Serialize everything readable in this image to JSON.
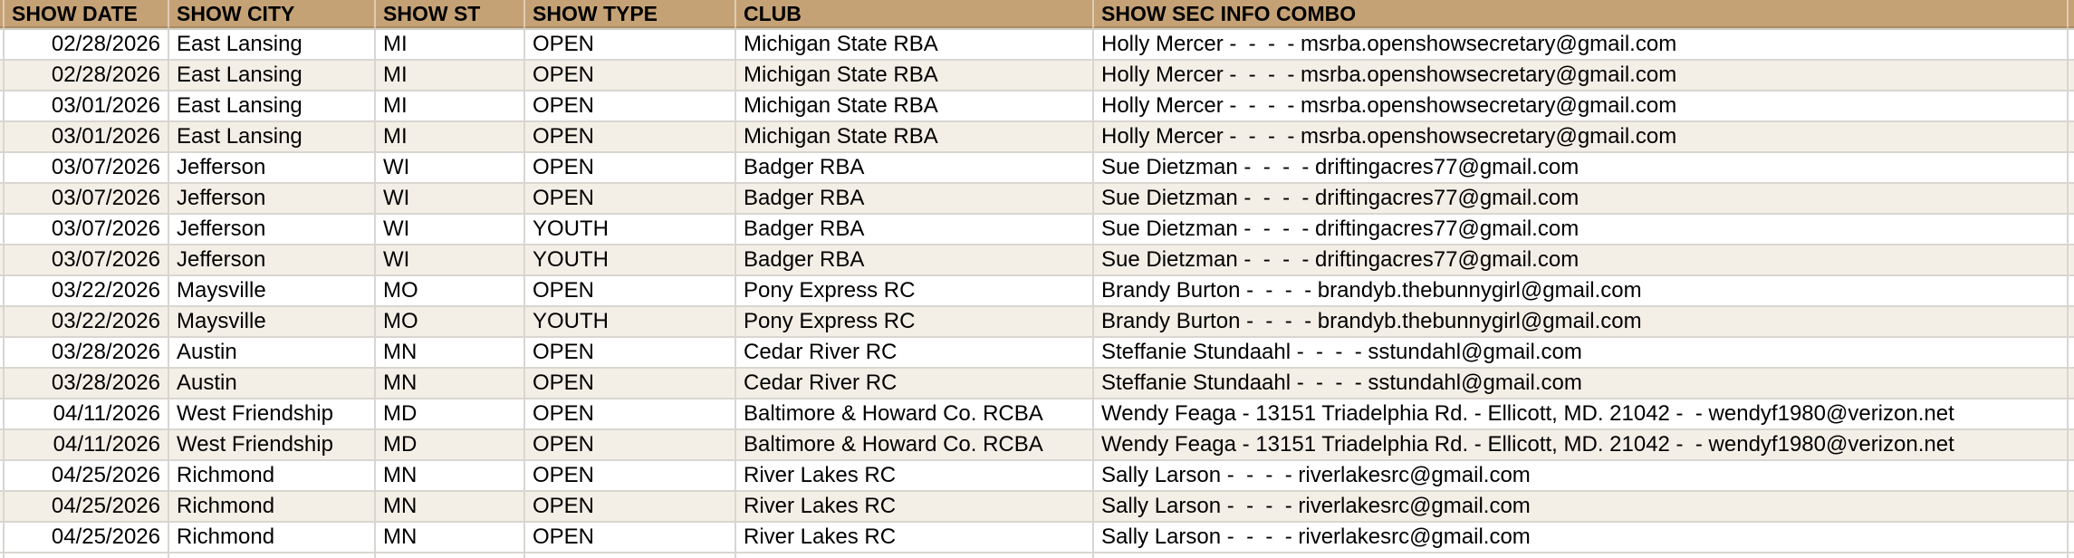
{
  "app": {
    "description": "Spreadsheet table of rabbit show listings"
  },
  "colors": {
    "header_bg": "#c5a276",
    "header_bottom_edge": "#ab8d61",
    "row_bg": "#ffffff",
    "row_alt_bg": "#f4efe6",
    "gridline": "#d9d6d1",
    "text": "#000000"
  },
  "table": {
    "columns": [
      {
        "label": "SHOW DATE"
      },
      {
        "label": "SHOW CITY"
      },
      {
        "label": "SHOW ST"
      },
      {
        "label": "SHOW TYPE"
      },
      {
        "label": "CLUB"
      },
      {
        "label": "SHOW SEC INFO COMBO"
      }
    ],
    "rows": [
      {
        "cells": [
          "02/28/2026",
          "East Lansing",
          "MI",
          "OPEN",
          "Michigan State RBA",
          "Holly Mercer -  -  -  - msrba.openshowsecretary@gmail.com"
        ]
      },
      {
        "cells": [
          "02/28/2026",
          "East Lansing",
          "MI",
          "OPEN",
          "Michigan State RBA",
          "Holly Mercer -  -  -  - msrba.openshowsecretary@gmail.com"
        ]
      },
      {
        "cells": [
          "03/01/2026",
          "East Lansing",
          "MI",
          "OPEN",
          "Michigan State RBA",
          "Holly Mercer -  -  -  - msrba.openshowsecretary@gmail.com"
        ]
      },
      {
        "cells": [
          "03/01/2026",
          "East Lansing",
          "MI",
          "OPEN",
          "Michigan State RBA",
          "Holly Mercer -  -  -  - msrba.openshowsecretary@gmail.com"
        ]
      },
      {
        "cells": [
          "03/07/2026",
          "Jefferson",
          "WI",
          "OPEN",
          "Badger RBA",
          "Sue Dietzman -  -  -  - driftingacres77@gmail.com"
        ]
      },
      {
        "cells": [
          "03/07/2026",
          "Jefferson",
          "WI",
          "OPEN",
          "Badger RBA",
          "Sue Dietzman -  -  -  - driftingacres77@gmail.com"
        ]
      },
      {
        "cells": [
          "03/07/2026",
          "Jefferson",
          "WI",
          "YOUTH",
          "Badger RBA",
          "Sue Dietzman -  -  -  - driftingacres77@gmail.com"
        ]
      },
      {
        "cells": [
          "03/07/2026",
          "Jefferson",
          "WI",
          "YOUTH",
          "Badger RBA",
          "Sue Dietzman -  -  -  - driftingacres77@gmail.com"
        ]
      },
      {
        "cells": [
          "03/22/2026",
          "Maysville",
          "MO",
          "OPEN",
          "Pony Express RC",
          "Brandy Burton -  -  -  - brandyb.thebunnygirl@gmail.com"
        ]
      },
      {
        "cells": [
          "03/22/2026",
          "Maysville",
          "MO",
          "YOUTH",
          "Pony Express RC",
          "Brandy Burton -  -  -  - brandyb.thebunnygirl@gmail.com"
        ]
      },
      {
        "cells": [
          "03/28/2026",
          "Austin",
          "MN",
          "OPEN",
          "Cedar River RC",
          "Steffanie Stundaahl -  -  -  - sstundahl@gmail.com"
        ]
      },
      {
        "cells": [
          "03/28/2026",
          "Austin",
          "MN",
          "OPEN",
          "Cedar River RC",
          "Steffanie Stundaahl -  -  -  - sstundahl@gmail.com"
        ]
      },
      {
        "cells": [
          "04/11/2026",
          "West Friendship",
          "MD",
          "OPEN",
          "Baltimore & Howard Co. RCBA",
          "Wendy Feaga - 13151 Triadelphia Rd. - Ellicott, MD. 21042 -  - wendyf1980@verizon.net"
        ]
      },
      {
        "cells": [
          "04/11/2026",
          "West Friendship",
          "MD",
          "OPEN",
          "Baltimore & Howard Co. RCBA",
          "Wendy Feaga - 13151 Triadelphia Rd. - Ellicott, MD. 21042 -  - wendyf1980@verizon.net"
        ]
      },
      {
        "cells": [
          "04/25/2026",
          "Richmond",
          "MN",
          "OPEN",
          "River Lakes RC",
          "Sally Larson -  -  -  - riverlakesrc@gmail.com"
        ]
      },
      {
        "cells": [
          "04/25/2026",
          "Richmond",
          "MN",
          "OPEN",
          "River Lakes RC",
          "Sally Larson -  -  -  - riverlakesrc@gmail.com"
        ]
      },
      {
        "cells": [
          "04/25/2026",
          "Richmond",
          "MN",
          "OPEN",
          "River Lakes RC",
          "Sally Larson -  -  -  - riverlakesrc@gmail.com"
        ]
      }
    ]
  }
}
